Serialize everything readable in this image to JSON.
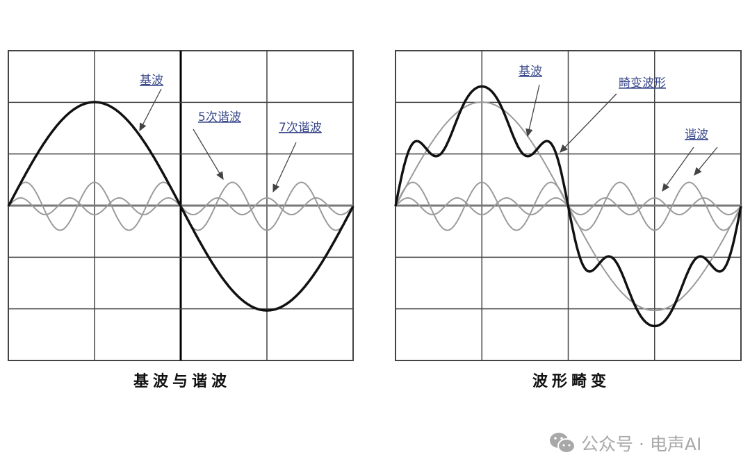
{
  "left_panel": {
    "caption": "基波与谐波",
    "labels": {
      "fundamental": "基波",
      "h5": "5次谐波",
      "h7": "7次谐波"
    }
  },
  "right_panel": {
    "caption": "波形畸变",
    "labels": {
      "fundamental": "基波",
      "distorted": "畸变波形",
      "harmonic": "谐波"
    }
  },
  "waves": {
    "fundamental": {
      "order": 1,
      "amplitude": 1.0
    },
    "harmonics": [
      {
        "order": 5,
        "amplitude": 0.23
      },
      {
        "order": 7,
        "amplitude": 0.08
      }
    ]
  },
  "colors": {
    "fundamental": "#111111",
    "harmonic": "#9a9a9a",
    "grid": "#444444",
    "label": "#3b4a8c"
  },
  "watermark": {
    "icon": "wechat-icon",
    "text": "公众号 · 电声AI"
  }
}
